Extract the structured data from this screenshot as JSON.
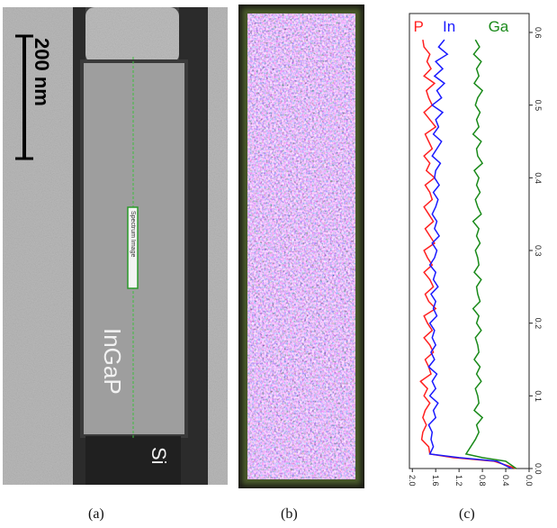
{
  "panel_a": {
    "scale_bar_label": "200 nm",
    "material_top": "InGaP",
    "material_bottom": "Si",
    "spectrum_label": "Spectrum Image",
    "caption": "(a)"
  },
  "panel_b": {
    "caption": "(b)",
    "colors": {
      "p": "#ff3333",
      "in": "#3355ff",
      "ga": "#2ea02e"
    }
  },
  "panel_c": {
    "caption": "(c)"
  },
  "chart_data": {
    "type": "line",
    "orientation": "rotated",
    "series": [
      {
        "name": "P",
        "color": "#ff2020",
        "x": [
          0.59,
          0.58,
          0.57,
          0.56,
          0.55,
          0.54,
          0.53,
          0.52,
          0.51,
          0.5,
          0.49,
          0.48,
          0.47,
          0.46,
          0.45,
          0.44,
          0.43,
          0.42,
          0.41,
          0.4,
          0.39,
          0.38,
          0.37,
          0.36,
          0.35,
          0.34,
          0.33,
          0.32,
          0.31,
          0.3,
          0.29,
          0.28,
          0.27,
          0.26,
          0.25,
          0.24,
          0.23,
          0.22,
          0.21,
          0.2,
          0.19,
          0.18,
          0.17,
          0.16,
          0.15,
          0.14,
          0.13,
          0.12,
          0.11,
          0.1,
          0.09,
          0.08,
          0.07,
          0.06,
          0.05,
          0.04,
          0.03,
          0.02,
          0.015,
          0.01,
          0.0
        ],
        "y": [
          1.82,
          1.8,
          1.7,
          1.75,
          1.68,
          1.8,
          1.62,
          1.76,
          1.72,
          1.66,
          1.8,
          1.7,
          1.6,
          1.78,
          1.72,
          1.66,
          1.8,
          1.7,
          1.76,
          1.62,
          1.78,
          1.7,
          1.66,
          1.8,
          1.72,
          1.64,
          1.78,
          1.7,
          1.62,
          1.8,
          1.74,
          1.66,
          1.8,
          1.7,
          1.64,
          1.78,
          1.72,
          1.6,
          1.8,
          1.74,
          1.66,
          1.8,
          1.7,
          1.64,
          1.78,
          1.72,
          1.68,
          1.86,
          1.74,
          1.8,
          1.7,
          1.78,
          1.82,
          1.76,
          1.82,
          1.84,
          1.72,
          1.7,
          1.3,
          0.6,
          0.22
        ]
      },
      {
        "name": "In",
        "color": "#1a1aff",
        "x": [
          0.59,
          0.58,
          0.57,
          0.56,
          0.55,
          0.54,
          0.53,
          0.52,
          0.51,
          0.5,
          0.49,
          0.48,
          0.47,
          0.46,
          0.45,
          0.44,
          0.43,
          0.42,
          0.41,
          0.4,
          0.39,
          0.38,
          0.37,
          0.36,
          0.35,
          0.34,
          0.33,
          0.32,
          0.31,
          0.3,
          0.29,
          0.28,
          0.27,
          0.26,
          0.25,
          0.24,
          0.23,
          0.22,
          0.21,
          0.2,
          0.19,
          0.18,
          0.17,
          0.16,
          0.15,
          0.14,
          0.13,
          0.12,
          0.11,
          0.1,
          0.09,
          0.08,
          0.07,
          0.06,
          0.05,
          0.04,
          0.03,
          0.02,
          0.015,
          0.01,
          0.0
        ],
        "y": [
          1.45,
          1.55,
          1.4,
          1.6,
          1.48,
          1.62,
          1.45,
          1.58,
          1.5,
          1.66,
          1.48,
          1.6,
          1.55,
          1.64,
          1.5,
          1.58,
          1.66,
          1.52,
          1.6,
          1.62,
          1.54,
          1.64,
          1.56,
          1.6,
          1.66,
          1.58,
          1.62,
          1.54,
          1.66,
          1.58,
          1.62,
          1.7,
          1.6,
          1.64,
          1.56,
          1.68,
          1.6,
          1.64,
          1.58,
          1.7,
          1.62,
          1.66,
          1.6,
          1.68,
          1.62,
          1.72,
          1.58,
          1.66,
          1.6,
          1.7,
          1.56,
          1.64,
          1.6,
          1.72,
          1.66,
          1.68,
          1.64,
          1.7,
          1.2,
          0.55,
          0.3
        ]
      },
      {
        "name": "Ga",
        "color": "#1a8a1a",
        "x": [
          0.59,
          0.58,
          0.57,
          0.56,
          0.55,
          0.54,
          0.53,
          0.52,
          0.51,
          0.5,
          0.49,
          0.48,
          0.47,
          0.46,
          0.45,
          0.44,
          0.43,
          0.42,
          0.41,
          0.4,
          0.39,
          0.38,
          0.37,
          0.36,
          0.35,
          0.34,
          0.33,
          0.32,
          0.31,
          0.3,
          0.29,
          0.28,
          0.27,
          0.26,
          0.25,
          0.24,
          0.23,
          0.22,
          0.21,
          0.2,
          0.19,
          0.18,
          0.17,
          0.16,
          0.15,
          0.14,
          0.13,
          0.12,
          0.11,
          0.1,
          0.09,
          0.08,
          0.07,
          0.06,
          0.05,
          0.04,
          0.03,
          0.02,
          0.015,
          0.01,
          0.0
        ],
        "y": [
          0.92,
          0.85,
          0.95,
          0.82,
          0.9,
          0.86,
          0.94,
          0.8,
          0.88,
          0.92,
          0.84,
          0.9,
          0.86,
          0.96,
          0.82,
          0.9,
          0.88,
          0.8,
          0.94,
          0.86,
          0.9,
          0.84,
          0.92,
          0.88,
          0.82,
          0.96,
          0.86,
          0.9,
          0.84,
          0.92,
          0.88,
          0.86,
          0.94,
          0.82,
          0.9,
          0.88,
          0.84,
          0.96,
          0.86,
          0.9,
          0.82,
          0.92,
          0.88,
          0.86,
          0.94,
          0.84,
          0.9,
          0.82,
          0.92,
          0.88,
          0.86,
          0.94,
          0.8,
          0.9,
          0.86,
          0.92,
          1.0,
          1.08,
          0.8,
          0.4,
          0.22
        ]
      }
    ],
    "x_ticks": [
      "0.0",
      "0.1",
      "0.2",
      "0.3",
      "0.4",
      "0.5",
      "0.6"
    ],
    "y_ticks": [
      "2.0",
      "1.6",
      "1.2",
      "0.8",
      "0.4",
      "0.0"
    ],
    "xlim": [
      0.0,
      0.6
    ],
    "ylim": [
      2.05,
      0.0
    ],
    "grid": false,
    "legend_placement": "top"
  }
}
